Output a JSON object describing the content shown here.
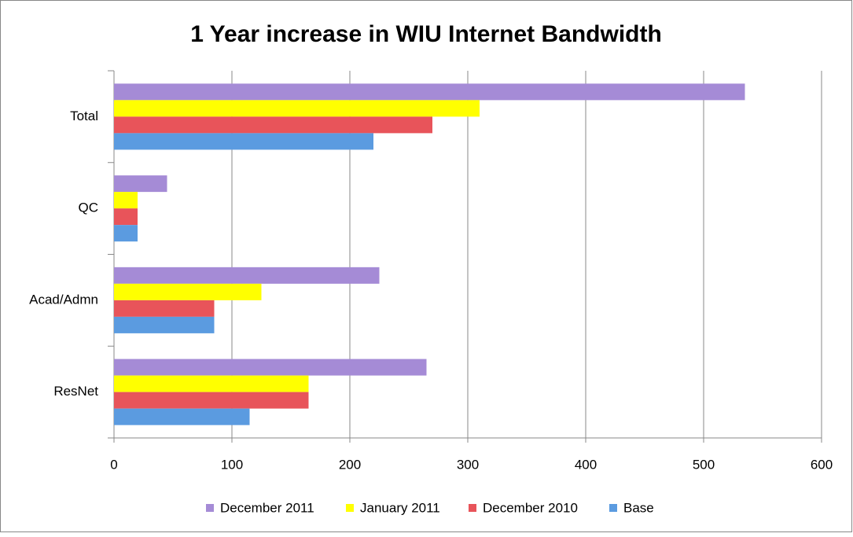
{
  "chart_data": {
    "type": "bar",
    "orientation": "horizontal",
    "title": "1 Year increase in WIU Internet Bandwidth",
    "categories": [
      "Total",
      "QC",
      "Acad/Admn",
      "ResNet"
    ],
    "series": [
      {
        "name": "December 2011",
        "color": "#a58bd6",
        "values": [
          535,
          45,
          225,
          265
        ]
      },
      {
        "name": "January 2011",
        "color": "#ffff00",
        "values": [
          310,
          20,
          125,
          165
        ]
      },
      {
        "name": "December 2010",
        "color": "#e8545a",
        "values": [
          270,
          20,
          85,
          165
        ]
      },
      {
        "name": "Base",
        "color": "#5b9be0",
        "values": [
          220,
          20,
          85,
          115
        ]
      }
    ],
    "xlim": [
      0,
      600
    ],
    "xticks": [
      0,
      100,
      200,
      300,
      400,
      500,
      600
    ],
    "grid": true,
    "legend": "bottom"
  }
}
